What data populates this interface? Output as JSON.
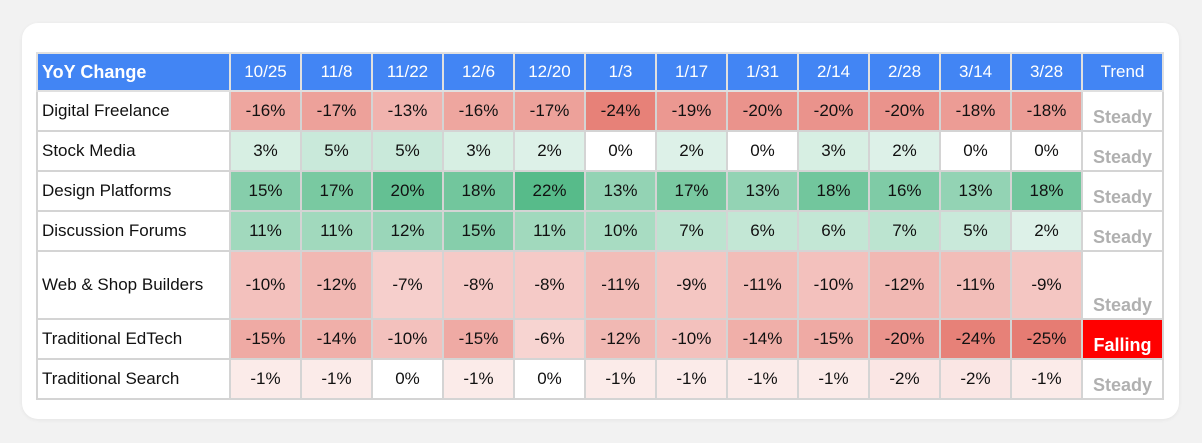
{
  "chart_data": {
    "type": "table",
    "corner_label": "YoY Change",
    "columns": [
      "10/25",
      "11/8",
      "11/22",
      "12/6",
      "12/20",
      "1/3",
      "1/17",
      "1/31",
      "2/14",
      "2/28",
      "3/14",
      "3/28"
    ],
    "trend_header": "Trend",
    "rows": [
      {
        "label": "Digital Freelance",
        "values": [
          -16,
          -17,
          -13,
          -16,
          -17,
          -24,
          -19,
          -20,
          -20,
          -20,
          -18,
          -18
        ],
        "trend": "Steady"
      },
      {
        "label": "Stock Media",
        "values": [
          3,
          5,
          5,
          3,
          2,
          0,
          2,
          0,
          3,
          2,
          0,
          0
        ],
        "trend": "Steady"
      },
      {
        "label": "Design Platforms",
        "values": [
          15,
          17,
          20,
          18,
          22,
          13,
          17,
          13,
          18,
          16,
          13,
          18
        ],
        "trend": "Steady"
      },
      {
        "label": "Discussion Forums",
        "values": [
          11,
          11,
          12,
          15,
          11,
          10,
          7,
          6,
          6,
          7,
          5,
          2
        ],
        "trend": "Steady"
      },
      {
        "label": "Web & Shop Builders",
        "values": [
          -10,
          -12,
          -7,
          -8,
          -8,
          -11,
          -9,
          -11,
          -10,
          -12,
          -11,
          -9
        ],
        "trend": "Steady"
      },
      {
        "label": "Traditional EdTech",
        "values": [
          -15,
          -14,
          -10,
          -15,
          -6,
          -12,
          -10,
          -14,
          -15,
          -20,
          -24,
          -25
        ],
        "trend": "Falling"
      },
      {
        "label": "Traditional Search",
        "values": [
          -1,
          -1,
          0,
          -1,
          0,
          -1,
          -1,
          -1,
          -1,
          -2,
          -2,
          -1
        ],
        "trend": "Steady"
      }
    ],
    "value_suffix": "%",
    "colors": {
      "header_bg": "#4285f4",
      "positive": "#57bb8a",
      "negative": "#e67c73",
      "falling": "#ff0000",
      "steady_text": "#b0b0b0"
    }
  }
}
